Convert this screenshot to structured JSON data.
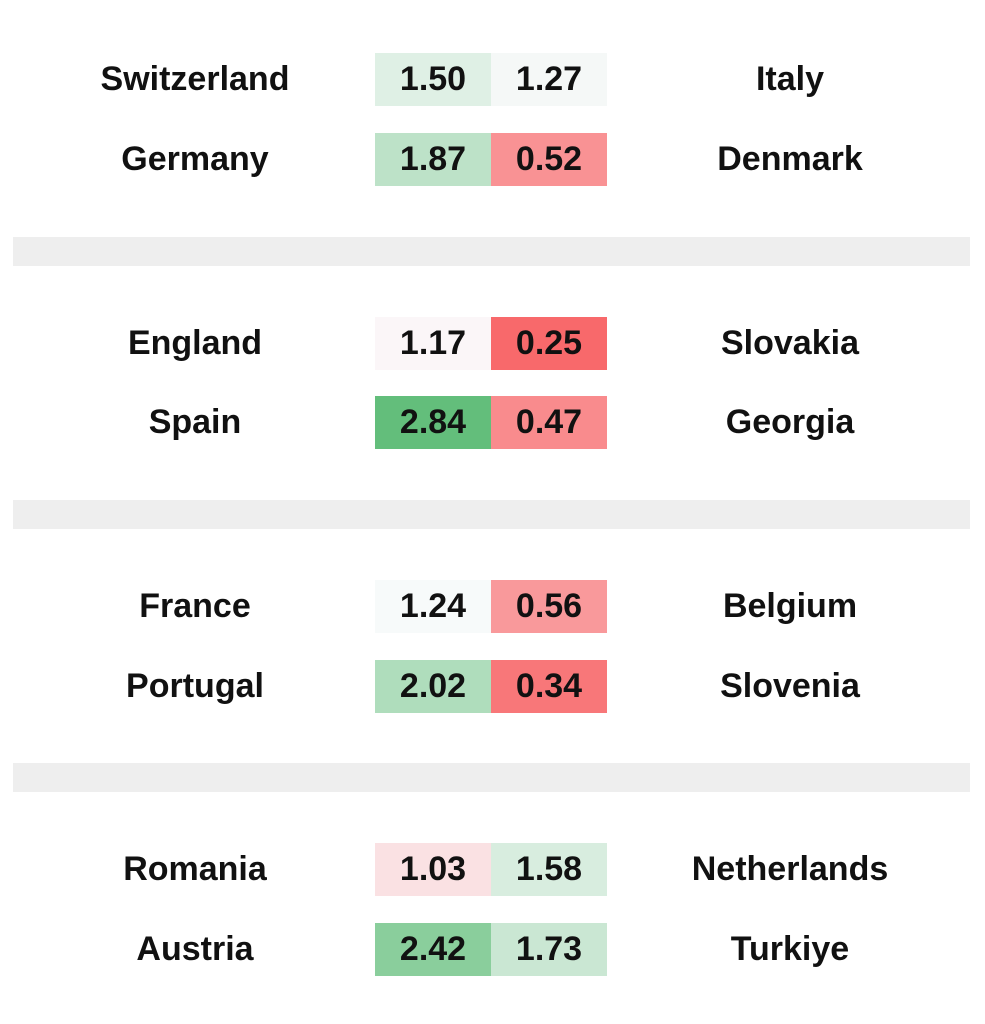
{
  "chart_data": {
    "type": "table",
    "color_scale": {
      "low_color": "#f8696b",
      "mid_color": "#fbfbfd",
      "high_color": "#63be7b",
      "min": 0.25,
      "mid": 1.2,
      "max": 2.84
    },
    "groups": [
      {
        "matches": [
          {
            "home": "Switzerland",
            "home_value": "1.50",
            "away_value": "1.27",
            "away": "Italy"
          },
          {
            "home": "Germany",
            "home_value": "1.87",
            "away_value": "0.52",
            "away": "Denmark"
          }
        ]
      },
      {
        "matches": [
          {
            "home": "England",
            "home_value": "1.17",
            "away_value": "0.25",
            "away": "Slovakia"
          },
          {
            "home": "Spain",
            "home_value": "2.84",
            "away_value": "0.47",
            "away": "Georgia"
          }
        ]
      },
      {
        "matches": [
          {
            "home": "France",
            "home_value": "1.24",
            "away_value": "0.56",
            "away": "Belgium"
          },
          {
            "home": "Portugal",
            "home_value": "2.02",
            "away_value": "0.34",
            "away": "Slovenia"
          }
        ]
      },
      {
        "matches": [
          {
            "home": "Romania",
            "home_value": "1.03",
            "away_value": "1.58",
            "away": "Netherlands"
          },
          {
            "home": "Austria",
            "home_value": "2.42",
            "away_value": "1.73",
            "away": "Turkiye"
          }
        ]
      }
    ]
  }
}
